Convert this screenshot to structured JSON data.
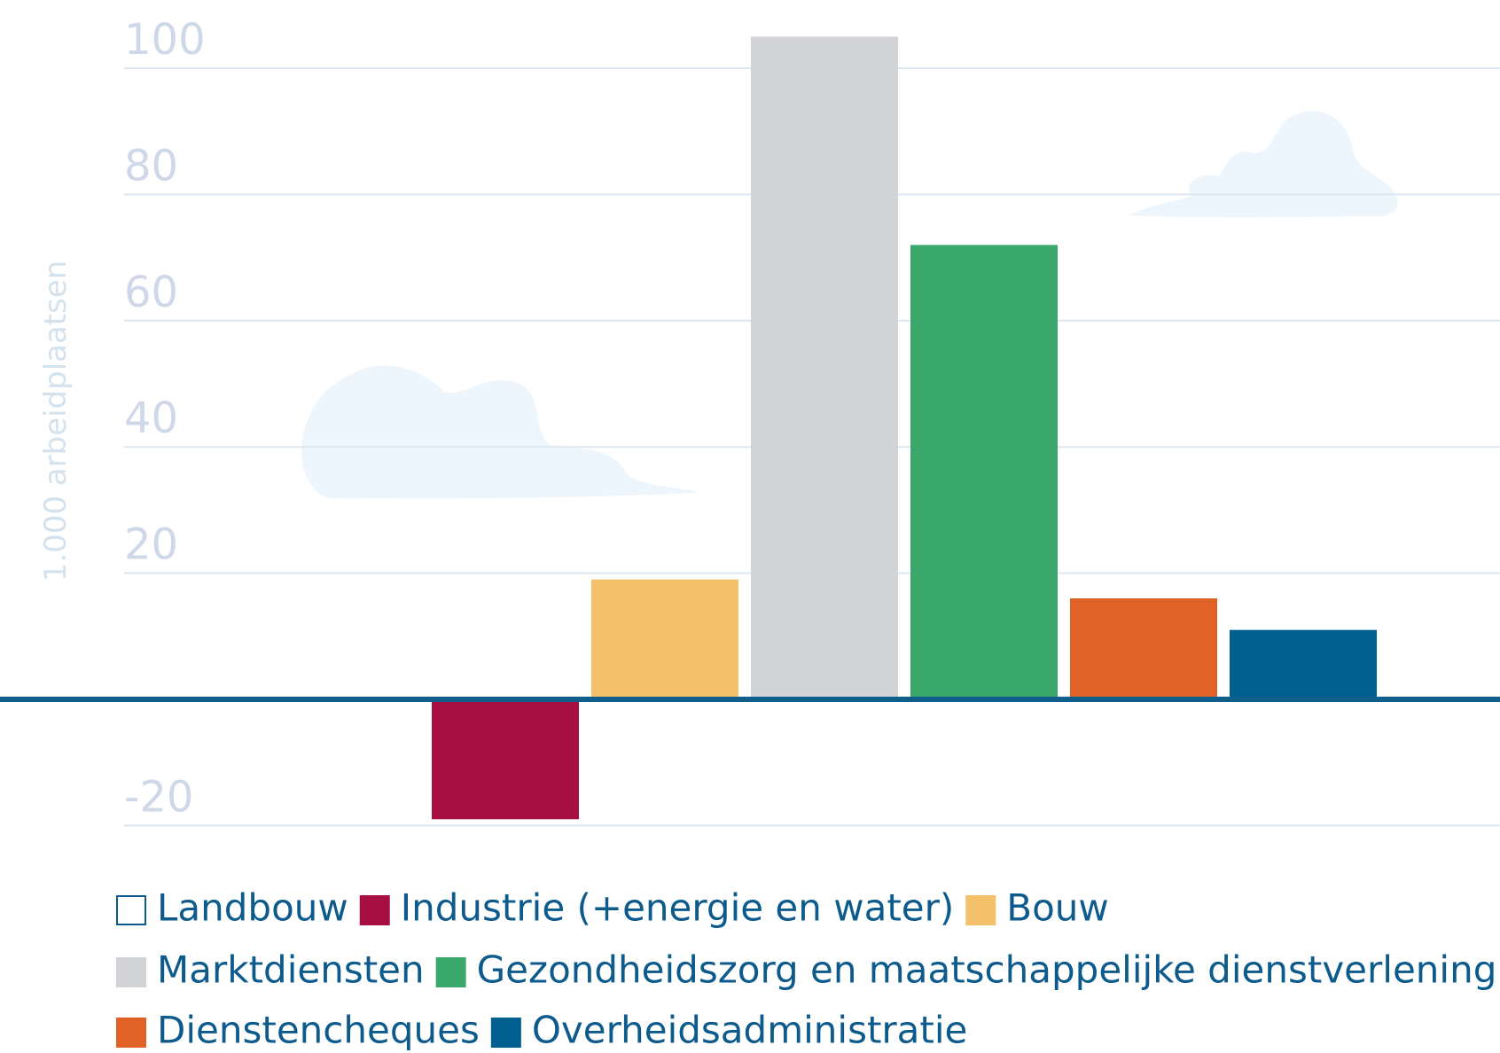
{
  "chart_data": {
    "type": "bar",
    "y_axis_label": "1.000 arbeidplaatsen",
    "categories": [
      "Landbouw",
      "Industrie (+energie en water)",
      "Bouw",
      "Marktdiensten",
      "Gezondheidszorg en maatschappelijke dienstverlening",
      "Dienstencheques",
      "Overheidsadministratie"
    ],
    "values": [
      0,
      -19,
      19,
      105,
      72,
      16,
      11
    ],
    "colors": [
      "#ffffff",
      "#a70e42",
      "#f4c06a",
      "#d1d3d5",
      "#3ba86b",
      "#e06227",
      "#005f8f"
    ],
    "ylim": [
      -20,
      105
    ],
    "yticks": [
      -20,
      20,
      40,
      60,
      80,
      100
    ],
    "grid": true
  }
}
